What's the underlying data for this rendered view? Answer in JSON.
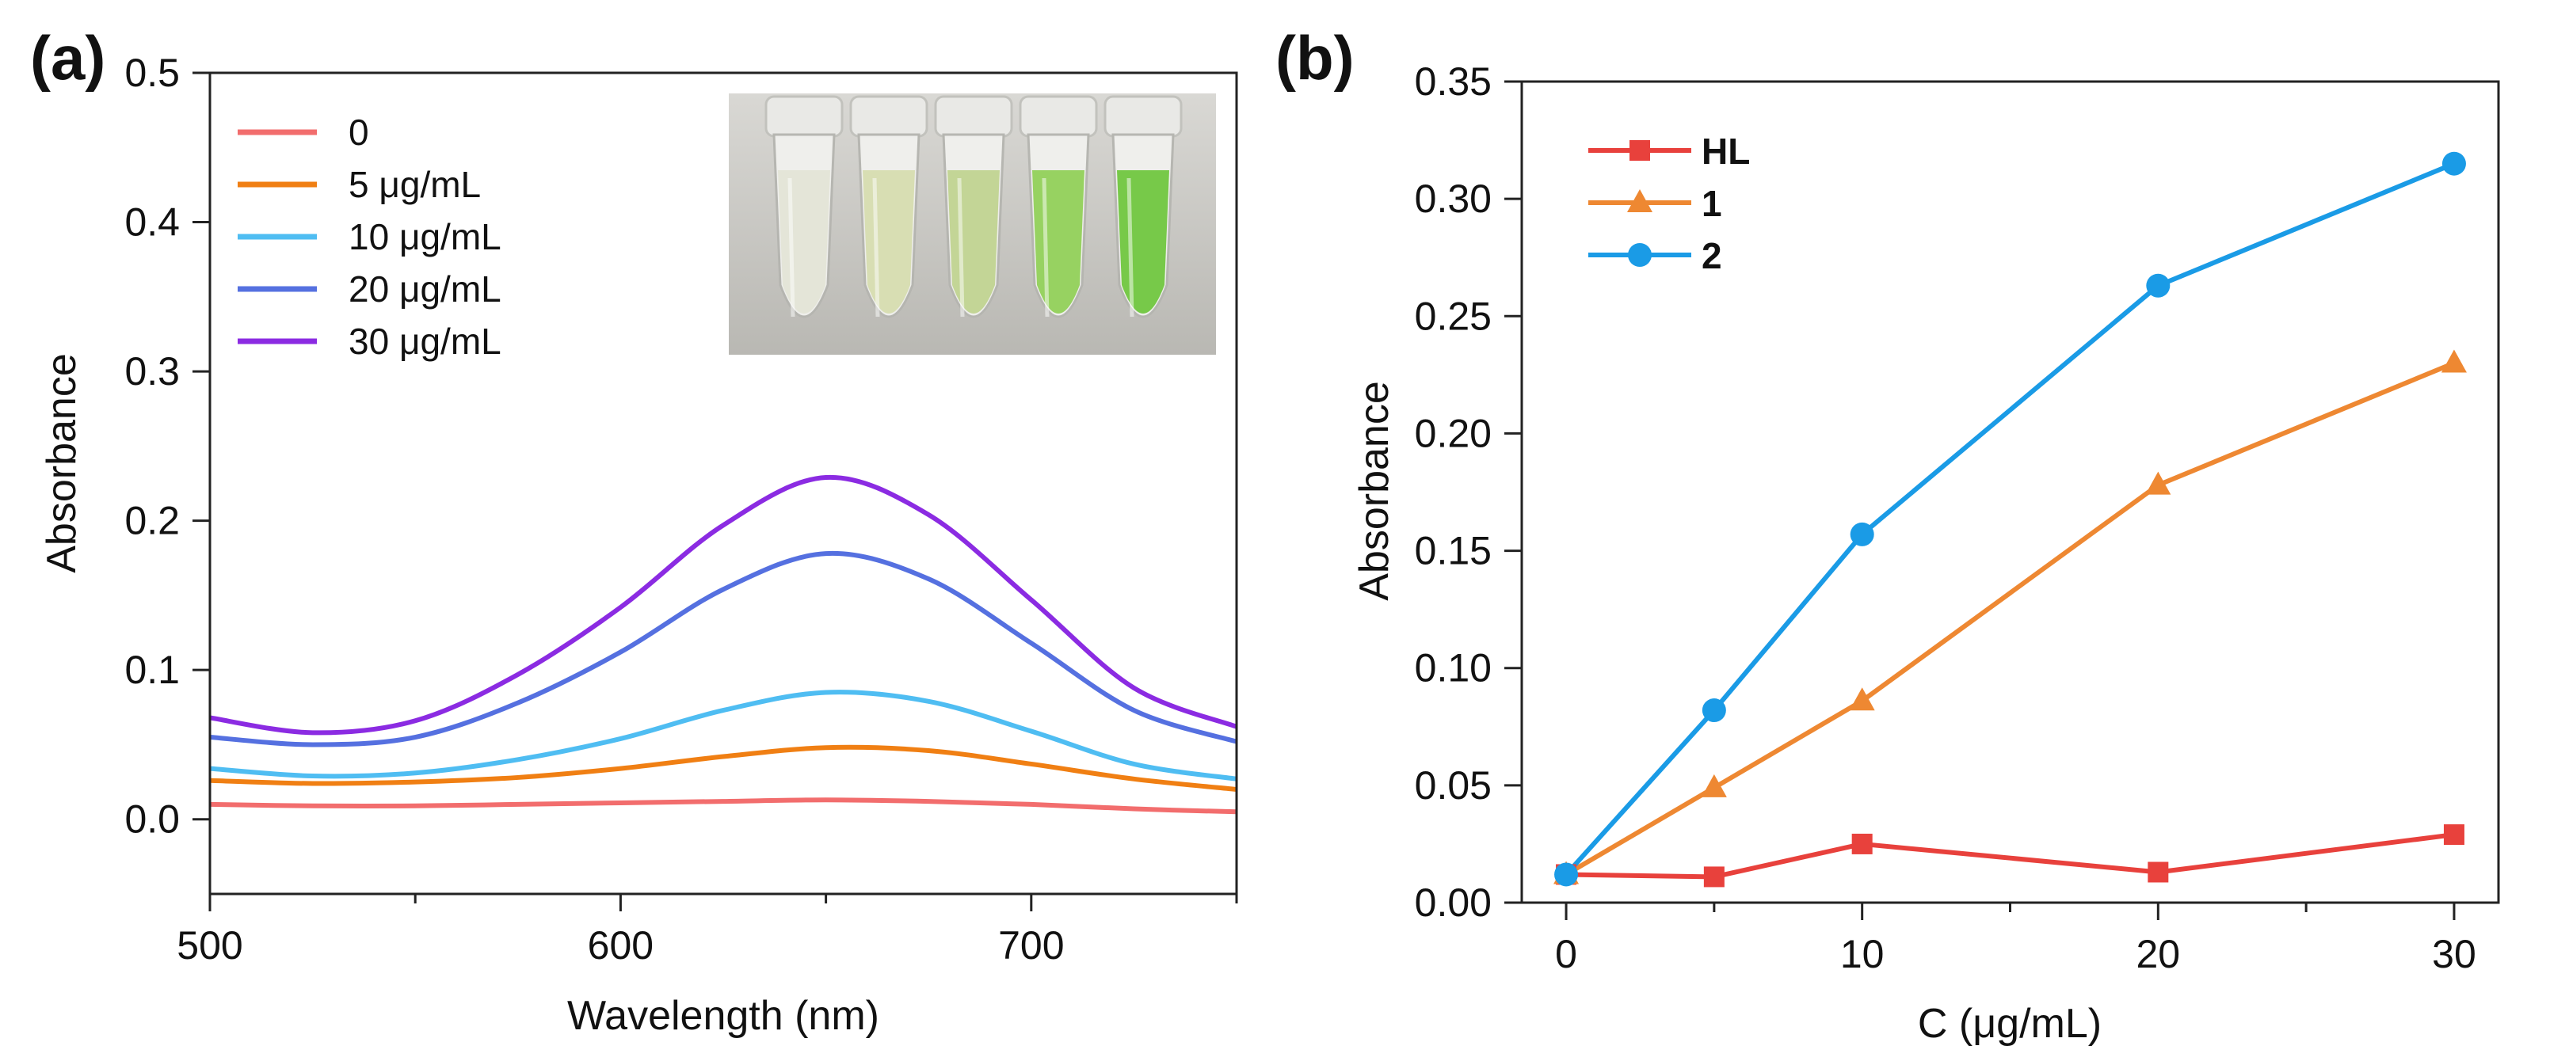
{
  "panels": {
    "a": {
      "label": "(a)"
    },
    "b": {
      "label": "(b)"
    }
  },
  "chart_data": [
    {
      "panel": "(a)",
      "type": "line",
      "xlabel": "Wavelength (nm)",
      "ylabel": "Absorbance",
      "xlim": [
        500,
        750
      ],
      "ylim": [
        -0.05,
        0.5
      ],
      "xticks": [
        500,
        600,
        700
      ],
      "xticks_minor": [
        550,
        650,
        750
      ],
      "yticks": [
        0.0,
        0.1,
        0.2,
        0.3,
        0.4,
        0.5
      ],
      "x": [
        500,
        525,
        550,
        575,
        600,
        625,
        650,
        675,
        700,
        725,
        750
      ],
      "series": [
        {
          "name": "0",
          "color": "#f26d6d",
          "values": [
            0.01,
            0.009,
            0.009,
            0.01,
            0.011,
            0.012,
            0.013,
            0.012,
            0.01,
            0.007,
            0.005
          ]
        },
        {
          "name": "5 μg/mL",
          "color": "#f07f13",
          "values": [
            0.026,
            0.024,
            0.025,
            0.028,
            0.034,
            0.042,
            0.048,
            0.046,
            0.037,
            0.027,
            0.02
          ]
        },
        {
          "name": "10 μg/mL",
          "color": "#4fbdf2",
          "values": [
            0.034,
            0.029,
            0.031,
            0.04,
            0.054,
            0.073,
            0.085,
            0.079,
            0.059,
            0.037,
            0.027
          ]
        },
        {
          "name": "20 μg/mL",
          "color": "#5570e0",
          "values": [
            0.055,
            0.05,
            0.055,
            0.078,
            0.112,
            0.154,
            0.178,
            0.161,
            0.118,
            0.073,
            0.052
          ]
        },
        {
          "name": "30 μg/mL",
          "color": "#8b2be2",
          "values": [
            0.068,
            0.058,
            0.066,
            0.097,
            0.142,
            0.197,
            0.229,
            0.204,
            0.147,
            0.088,
            0.062
          ]
        }
      ],
      "legend_position": "top-left",
      "inset": "photo of five sample tubes with increasingly green solutions, top-right"
    },
    {
      "panel": "(b)",
      "type": "line",
      "xlabel": "C (μg/mL)",
      "ylabel": "Absorbance",
      "xlim": [
        -1.5,
        31.5
      ],
      "ylim": [
        0,
        0.35
      ],
      "xticks": [
        0,
        10,
        20,
        30
      ],
      "xticks_minor": [
        5,
        15,
        25
      ],
      "yticks": [
        0.0,
        0.05,
        0.1,
        0.15,
        0.2,
        0.25,
        0.3,
        0.35
      ],
      "x": [
        0,
        5,
        10,
        20,
        30
      ],
      "series": [
        {
          "name": "HL",
          "color": "#e8413c",
          "marker": "square",
          "values": [
            0.012,
            0.011,
            0.025,
            0.013,
            0.029
          ]
        },
        {
          "name": "1",
          "color": "#ee8832",
          "marker": "triangle",
          "values": [
            0.012,
            0.049,
            0.086,
            0.178,
            0.23
          ]
        },
        {
          "name": "2",
          "color": "#1a9be6",
          "marker": "circle",
          "values": [
            0.012,
            0.082,
            0.157,
            0.263,
            0.315
          ]
        }
      ],
      "legend_position": "top-left"
    }
  ]
}
